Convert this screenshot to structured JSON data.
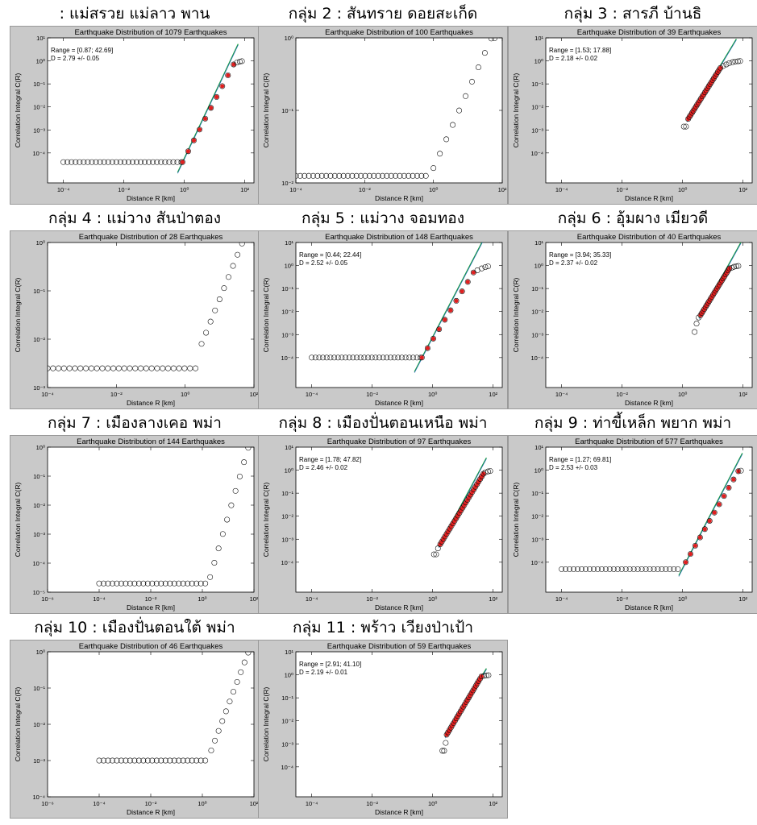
{
  "tick_labels": {
    "x_m4": "10⁻⁴",
    "x_m2": "10⁻²",
    "x_0": "10⁰",
    "x_2": "10²",
    "x_m6": "10⁻⁶",
    "y_0": "10⁰",
    "y_m1": "10⁻¹",
    "y_m2": "10⁻²",
    "y_m3": "10⁻³",
    "y_m4": "10⁻⁴",
    "y_m5": "10⁻⁵",
    "y_1": "10¹"
  },
  "chart_data": [
    {
      "heading": ": แม่สรวย แม่ลาว พาน",
      "type": "scatter",
      "title": "Earthquake Distribution of 1079 Earthquakes",
      "xlabel": "Distance R [km]",
      "ylabel": "Correlation Integral C(R)",
      "xscale": "log",
      "yscale": "log",
      "xlim": [
        3e-05,
        200
      ],
      "ylim": [
        5e-06,
        10
      ],
      "xticks": [
        "x_m4",
        "x_m2",
        "x_0",
        "x_2"
      ],
      "yticks": [
        "y_1",
        "y_0",
        "y_m1",
        "y_m2",
        "y_m3",
        "y_m4"
      ],
      "range_text": "Range = [0.87; 42.69]",
      "d_text": "D = 2.79 +/- 0.05",
      "plateau": {
        "from": 0.0001,
        "to": 0.8,
        "level": 4e-05,
        "n": 30
      },
      "rise": {
        "from": 0.87,
        "to": 42.69,
        "start": 4e-05,
        "end": 0.7,
        "n": 10,
        "red": true,
        "dense": false
      },
      "tail": [
        {
          "x": 55,
          "y": 0.85
        },
        {
          "x": 68,
          "y": 0.93
        },
        {
          "x": 80,
          "y": 0.97
        }
      ],
      "fit": {
        "slope": 2.79,
        "x0": 0.87,
        "y0": 4e-05,
        "from": 0.6,
        "to": 60
      }
    },
    {
      "heading": "กลุ่ม 2 : สันทราย ดอยสะเก็ด",
      "type": "scatter",
      "title": "Earthquake Distribution of 100 Earthquakes",
      "xlabel": "Distance R [km]",
      "ylabel": "Correlation Integral C(R)",
      "xscale": "log",
      "yscale": "log",
      "xlim": [
        0.0001,
        100
      ],
      "ylim": [
        0.01,
        1
      ],
      "xticks": [
        "x_m4",
        "x_m2",
        "x_0",
        "x_2"
      ],
      "yticks": [
        "y_0",
        "y_m1",
        "y_m2"
      ],
      "range_text": "",
      "d_text": "",
      "plateau": {
        "from": 0.0001,
        "to": 0.6,
        "level": 0.0125,
        "n": 31
      },
      "rise": {
        "from": 1,
        "to": 48,
        "start": 0.016,
        "end": 0.98,
        "n": 10,
        "red": false,
        "dense": false
      },
      "tail": [
        {
          "x": 60,
          "y": 0.99
        }
      ],
      "fit": null
    },
    {
      "heading": "กลุ่ม 3 : สารภี บ้านธิ",
      "type": "scatter",
      "title": "Earthquake Distribution of 39 Earthquakes",
      "xlabel": "Distance R [km]",
      "ylabel": "Correlation Integral C(R)",
      "xscale": "log",
      "yscale": "log",
      "xlim": [
        3e-05,
        200
      ],
      "ylim": [
        5e-06,
        10
      ],
      "xticks": [
        "x_m4",
        "x_m2",
        "x_0",
        "x_2"
      ],
      "yticks": [
        "y_1",
        "y_0",
        "y_m1",
        "y_m2",
        "y_m3",
        "y_m4"
      ],
      "range_text": "Range = [1.53; 17.88]",
      "d_text": "D = 2.18 +/- 0.02",
      "plateau": null,
      "pre": [
        {
          "x": 1.1,
          "y": 0.0014
        },
        {
          "x": 1.3,
          "y": 0.0014
        }
      ],
      "rise": {
        "from": 1.53,
        "to": 17.88,
        "start": 0.003,
        "end": 0.5,
        "n": 26,
        "red": true,
        "dense": true
      },
      "tail": [
        {
          "x": 22,
          "y": 0.6
        },
        {
          "x": 28,
          "y": 0.7
        },
        {
          "x": 35,
          "y": 0.8
        },
        {
          "x": 45,
          "y": 0.88
        },
        {
          "x": 55,
          "y": 0.93
        },
        {
          "x": 68,
          "y": 0.96
        },
        {
          "x": 80,
          "y": 0.98
        }
      ],
      "fit": {
        "slope": 2.18,
        "x0": 1.53,
        "y0": 0.003,
        "from": 1.4,
        "to": 60
      }
    },
    {
      "heading": "กลุ่ม 4 : แม่วาง สันป่าตอง",
      "type": "scatter",
      "title": "Earthquake Distribution of 28 Earthquakes",
      "xlabel": "Distance R [km]",
      "ylabel": "Correlation Integral C(R)",
      "xscale": "log",
      "yscale": "log",
      "xlim": [
        0.0001,
        100
      ],
      "ylim": [
        0.001,
        1
      ],
      "xticks": [
        "x_m4",
        "x_m2",
        "x_0",
        "x_2"
      ],
      "yticks": [
        "y_0",
        "y_m1",
        "y_m2",
        "y_m3"
      ],
      "range_text": "",
      "d_text": "",
      "plateau": {
        "from": 0.0001,
        "to": 2,
        "level": 0.0025,
        "n": 28
      },
      "rise": {
        "from": 3,
        "to": 45,
        "start": 0.008,
        "end": 0.95,
        "n": 10,
        "red": false,
        "dense": false
      },
      "tail": [],
      "fit": null
    },
    {
      "heading": "กลุ่ม 5 : แม่วาง จอมทอง",
      "type": "scatter",
      "title": "Earthquake Distribution of 148 Earthquakes",
      "xlabel": "Distance R [km]",
      "ylabel": "Correlation Integral C(R)",
      "xscale": "log",
      "yscale": "log",
      "xlim": [
        3e-05,
        200
      ],
      "ylim": [
        5e-06,
        10
      ],
      "xticks": [
        "x_m4",
        "x_m2",
        "x_0",
        "x_2"
      ],
      "yticks": [
        "y_1",
        "y_0",
        "y_m1",
        "y_m2",
        "y_m3",
        "y_m4"
      ],
      "range_text": "Range = [0.44; 22.44]",
      "d_text": "D = 2.52 +/- 0.05",
      "plateau": {
        "from": 0.0001,
        "to": 0.4,
        "level": 0.0001,
        "n": 30
      },
      "rise": {
        "from": 0.44,
        "to": 22.44,
        "start": 0.0001,
        "end": 0.5,
        "n": 10,
        "red": true,
        "dense": false
      },
      "tail": [
        {
          "x": 30,
          "y": 0.62
        },
        {
          "x": 42,
          "y": 0.75
        },
        {
          "x": 55,
          "y": 0.85
        },
        {
          "x": 68,
          "y": 0.92
        }
      ],
      "fit": {
        "slope": 2.52,
        "x0": 0.44,
        "y0": 0.0001,
        "from": 0.25,
        "to": 60
      }
    },
    {
      "heading": "กลุ่ม 6 : อุ้มผาง เมียวดี",
      "type": "scatter",
      "title": "Earthquake Distribution of 40 Earthquakes",
      "xlabel": "Distance R [km]",
      "ylabel": "Correlation Integral C(R)",
      "xscale": "log",
      "yscale": "log",
      "xlim": [
        3e-05,
        200
      ],
      "ylim": [
        5e-06,
        10
      ],
      "xticks": [
        "x_m4",
        "x_m2",
        "x_0",
        "x_2"
      ],
      "yticks": [
        "y_1",
        "y_0",
        "y_m1",
        "y_m2",
        "y_m3",
        "y_m4"
      ],
      "range_text": "Range = [3.94; 35.33]",
      "d_text": "D = 2.37 +/- 0.02",
      "plateau": null,
      "pre": [
        {
          "x": 2.5,
          "y": 0.0013
        },
        {
          "x": 2.9,
          "y": 0.003
        },
        {
          "x": 3.4,
          "y": 0.0055
        }
      ],
      "rise": {
        "from": 3.94,
        "to": 35.33,
        "start": 0.007,
        "end": 0.75,
        "n": 24,
        "red": true,
        "dense": true
      },
      "tail": [
        {
          "x": 42,
          "y": 0.8
        },
        {
          "x": 50,
          "y": 0.88
        },
        {
          "x": 60,
          "y": 0.93
        },
        {
          "x": 70,
          "y": 0.96
        }
      ],
      "fit": {
        "slope": 2.37,
        "x0": 3.94,
        "y0": 0.007,
        "from": 3.5,
        "to": 85
      }
    },
    {
      "heading": "กลุ่ม 7 : เมืองลางเคอ พม่า",
      "type": "scatter",
      "title": "Earthquake Distribution of 144 Earthquakes",
      "xlabel": "Distance R [km]",
      "ylabel": "Correlation Integral C(R)",
      "xscale": "log",
      "yscale": "log",
      "xlim": [
        1e-06,
        100
      ],
      "ylim": [
        1e-05,
        1
      ],
      "xticks": [
        "x_m6",
        "x_m4",
        "x_m2",
        "x_0",
        "x_2"
      ],
      "yticks": [
        "y_0",
        "y_m1",
        "y_m2",
        "y_m3",
        "y_m4",
        "y_m5"
      ],
      "range_text": "",
      "d_text": "",
      "plateau": {
        "from": 0.0001,
        "to": 1.3,
        "level": 2e-05,
        "n": 25
      },
      "rise": {
        "from": 2,
        "to": 60,
        "start": 3.3e-05,
        "end": 0.95,
        "n": 10,
        "red": false,
        "dense": false
      },
      "tail": [],
      "fit": null
    },
    {
      "heading": "กลุ่ม 8 : เมืองปั่นตอนเหนือ พม่า",
      "type": "scatter",
      "title": "Earthquake Distribution of 97 Earthquakes",
      "xlabel": "Distance R [km]",
      "ylabel": "Correlation Integral C(R)",
      "xscale": "log",
      "yscale": "log",
      "xlim": [
        3e-05,
        200
      ],
      "ylim": [
        5e-06,
        10
      ],
      "xticks": [
        "x_m4",
        "x_m2",
        "x_0",
        "x_2"
      ],
      "yticks": [
        "y_1",
        "y_0",
        "y_m1",
        "y_m2",
        "y_m3",
        "y_m4"
      ],
      "range_text": "Range = [1.78; 47.82]",
      "d_text": "D = 2.46 +/- 0.02",
      "plateau": null,
      "pre": [
        {
          "x": 1.1,
          "y": 0.00022
        },
        {
          "x": 1.3,
          "y": 0.00022
        },
        {
          "x": 1.5,
          "y": 0.0004
        }
      ],
      "rise": {
        "from": 1.78,
        "to": 47.82,
        "start": 0.0006,
        "end": 0.7,
        "n": 28,
        "red": true,
        "dense": true
      },
      "tail": [
        {
          "x": 55,
          "y": 0.8
        },
        {
          "x": 68,
          "y": 0.88
        },
        {
          "x": 80,
          "y": 0.92
        }
      ],
      "fit": {
        "slope": 2.46,
        "x0": 1.78,
        "y0": 0.0006,
        "from": 1.6,
        "to": 60
      }
    },
    {
      "heading": "กลุ่ม 9 : ท่าขี้เหล็ก พยาก พม่า",
      "type": "scatter",
      "title": "Earthquake Distribution of 577 Earthquakes",
      "xlabel": "Distance R [km]",
      "ylabel": "Correlation Integral C(R)",
      "xscale": "log",
      "yscale": "log",
      "xlim": [
        3e-05,
        200
      ],
      "ylim": [
        5e-06,
        10
      ],
      "xticks": [
        "x_m4",
        "x_m2",
        "x_0",
        "x_2"
      ],
      "yticks": [
        "y_1",
        "y_0",
        "y_m1",
        "y_m2",
        "y_m3",
        "y_m4"
      ],
      "range_text": "Range = [1.27; 69.81]",
      "d_text": "D = 2.53 +/- 0.03",
      "plateau": {
        "from": 0.0001,
        "to": 0.7,
        "level": 5e-05,
        "n": 30
      },
      "rise": {
        "from": 1.27,
        "to": 69.81,
        "start": 0.0001,
        "end": 0.9,
        "n": 12,
        "red": true,
        "dense": false
      },
      "tail": [
        {
          "x": 85,
          "y": 0.95
        }
      ],
      "fit": {
        "slope": 2.53,
        "x0": 1.27,
        "y0": 0.0001,
        "from": 0.75,
        "to": 95
      }
    },
    {
      "heading": "กลุ่ม 10 : เมืองปั่นตอนใต้ พม่า",
      "type": "scatter",
      "title": "Earthquake Distribution of 46 Earthquakes",
      "xlabel": "Distance R [km]",
      "ylabel": "Correlation Integral C(R)",
      "xscale": "log",
      "yscale": "log",
      "xlim": [
        1e-06,
        100
      ],
      "ylim": [
        0.0001,
        1
      ],
      "xticks": [
        "x_m6",
        "x_m4",
        "x_m2",
        "x_0",
        "x_2"
      ],
      "yticks": [
        "y_0",
        "y_m1",
        "y_m2",
        "y_m3",
        "y_m4"
      ],
      "range_text": "",
      "d_text": "",
      "plateau": {
        "from": 0.0001,
        "to": 1.3,
        "level": 0.001,
        "n": 25
      },
      "rise": {
        "from": 2.2,
        "to": 60,
        "start": 0.0019,
        "end": 0.95,
        "n": 11,
        "red": false,
        "dense": false
      },
      "tail": [],
      "fit": null
    },
    {
      "heading": "กลุ่ม 11 : พร้าว เวียงป่าเป้า",
      "type": "scatter",
      "title": "Earthquake Distribution of 59 Earthquakes",
      "xlabel": "Distance R [km]",
      "ylabel": "Correlation Integral C(R)",
      "xscale": "log",
      "yscale": "log",
      "xlim": [
        3e-05,
        200
      ],
      "ylim": [
        5e-06,
        10
      ],
      "xticks": [
        "x_m4",
        "x_m2",
        "x_0",
        "x_2"
      ],
      "yticks": [
        "y_1",
        "y_0",
        "y_m1",
        "y_m2",
        "y_m3",
        "y_m4"
      ],
      "range_text": "Range = [2.91; 41.10]",
      "d_text": "D = 2.19 +/- 0.01",
      "plateau": null,
      "pre": [
        {
          "x": 2.1,
          "y": 0.0005
        },
        {
          "x": 2.4,
          "y": 0.0005
        },
        {
          "x": 2.7,
          "y": 0.0011
        }
      ],
      "rise": {
        "from": 2.91,
        "to": 41.1,
        "start": 0.0025,
        "end": 0.85,
        "n": 26,
        "red": true,
        "dense": true
      },
      "tail": [
        {
          "x": 50,
          "y": 0.9
        },
        {
          "x": 60,
          "y": 0.94
        },
        {
          "x": 70,
          "y": 0.96
        }
      ],
      "fit": {
        "slope": 2.19,
        "x0": 2.91,
        "y0": 0.0025,
        "from": 2.6,
        "to": 60
      }
    }
  ]
}
